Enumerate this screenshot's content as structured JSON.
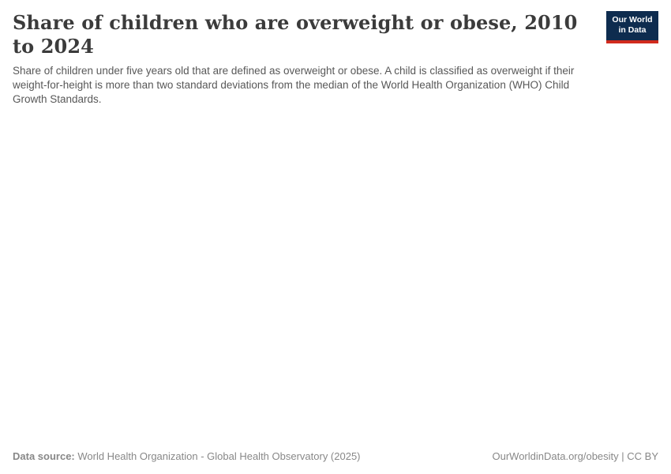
{
  "header": {
    "title": "Share of children who are overweight or obese, 2010 to 2024",
    "subtitle": "Share of children under five years old that are defined as overweight or obese. A child is classified as overweight if their weight-for-height is more than two standard deviations from the median of the World Health Organization (WHO) Child Growth Standards.",
    "logo": {
      "line1": "Our World",
      "line2": "in Data"
    }
  },
  "footer": {
    "data_source_label": "Data source:",
    "data_source_value": " World Health Organization - Global Health Observatory (2025)",
    "license_text": "OurWorldinData.org/obesity | CC BY"
  },
  "colors": {
    "background": "#ffffff",
    "title": "#3b3b3b",
    "subtitle": "#585858",
    "footer": "#888888",
    "logo_bg": "#0e2c4f",
    "logo_bar": "#d12a1d",
    "logo_text": "#ffffff"
  },
  "chart_data": {
    "type": "line",
    "title": "Share of children who are overweight or obese, 2010 to 2024",
    "xlabel": "",
    "ylabel": "",
    "x_range": [
      2010,
      2024
    ],
    "series": [],
    "plot_area_rendered": false,
    "legend_position": "none",
    "grid": false
  }
}
